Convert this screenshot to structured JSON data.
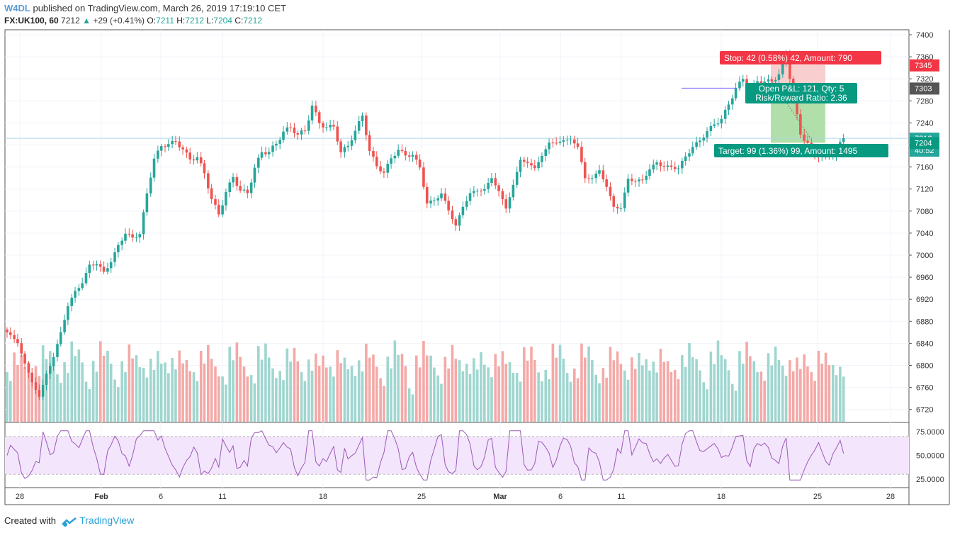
{
  "header": {
    "author": "W4DL",
    "published": "published on TradingView.com, March 26, 2019 17:19:10 CET",
    "symbol": "FX:UK100, 60",
    "last": "7212",
    "change_arrow": "▲",
    "change": "+29 (+0.41%)",
    "o_label": "O:",
    "o_value": "7211",
    "h_label": "H:",
    "h_value": "7212",
    "l_label": "L:",
    "l_value": "7204",
    "c_label": "C:",
    "c_value": "7212"
  },
  "footer": {
    "created_with": "Created with",
    "brand": "TradingView"
  },
  "colors": {
    "up": "#26a69a",
    "down": "#ef5350",
    "vol_up": "#9fd6cf",
    "vol_down": "#f4a9a7",
    "rsi_line": "#9b59b6",
    "rsi_band": "#f3e5fc",
    "stop_zone": "#f7c9c9",
    "target_zone": "#a8dca0",
    "last_price_line": "#add8e6"
  },
  "chart_data": {
    "type": "candlestick",
    "interval": "60",
    "price_axis": {
      "ticks": [
        7400,
        7360,
        7320,
        7280,
        7240,
        7200,
        7160,
        7120,
        7080,
        7040,
        7000,
        6960,
        6920,
        6880,
        6840,
        6800,
        6760,
        6720
      ],
      "range": [
        6700,
        7410
      ]
    },
    "time_axis": {
      "labels": [
        "28",
        "Feb",
        "6",
        "11",
        "18",
        "25",
        "Mar",
        "6",
        "11",
        "18",
        "25",
        "28"
      ]
    },
    "price_path": [
      [
        0,
        6850
      ],
      [
        3,
        6780
      ],
      [
        4,
        6745
      ],
      [
        6,
        6820
      ],
      [
        7,
        6860
      ],
      [
        9,
        6930
      ],
      [
        11,
        6990
      ],
      [
        13,
        6970
      ],
      [
        16,
        7030
      ],
      [
        18,
        7050
      ],
      [
        20,
        7170
      ],
      [
        21,
        7200
      ],
      [
        24,
        7195
      ],
      [
        26,
        7180
      ],
      [
        28,
        7100
      ],
      [
        29,
        7075
      ],
      [
        31,
        7140
      ],
      [
        33,
        7120
      ],
      [
        35,
        7180
      ],
      [
        37,
        7200
      ],
      [
        39,
        7240
      ],
      [
        41,
        7220
      ],
      [
        42,
        7260
      ],
      [
        43,
        7240
      ],
      [
        45,
        7230
      ],
      [
        46,
        7190
      ],
      [
        47,
        7210
      ],
      [
        49,
        7240
      ],
      [
        50,
        7185
      ],
      [
        52,
        7150
      ],
      [
        54,
        7200
      ],
      [
        56,
        7170
      ],
      [
        57,
        7150
      ],
      [
        58,
        7100
      ],
      [
        60,
        7110
      ],
      [
        62,
        7060
      ],
      [
        63,
        7080
      ],
      [
        65,
        7120
      ],
      [
        67,
        7140
      ],
      [
        69,
        7090
      ],
      [
        71,
        7160
      ],
      [
        73,
        7170
      ],
      [
        75,
        7200
      ],
      [
        77,
        7210
      ],
      [
        79,
        7190
      ],
      [
        80,
        7150
      ],
      [
        82,
        7150
      ],
      [
        84,
        7090
      ],
      [
        85,
        7080
      ],
      [
        86,
        7130
      ],
      [
        88,
        7150
      ],
      [
        90,
        7160
      ],
      [
        92,
        7160
      ],
      [
        93,
        7150
      ],
      [
        95,
        7210
      ],
      [
        97,
        7215
      ],
      [
        99,
        7250
      ],
      [
        100,
        7270
      ],
      [
        101,
        7300
      ],
      [
        102,
        7330
      ],
      [
        103,
        7310
      ],
      [
        105,
        7305
      ],
      [
        107,
        7330
      ],
      [
        108,
        7360
      ],
      [
        109,
        7290
      ],
      [
        110,
        7230
      ],
      [
        111,
        7200
      ],
      [
        112,
        7170
      ],
      [
        113,
        7180
      ],
      [
        115,
        7190
      ],
      [
        116,
        7212
      ]
    ],
    "volume_axis_top_value": 6843,
    "rsi": {
      "levels": [
        75.0,
        50.0,
        25.0
      ],
      "labels": [
        "75.0000",
        "50.0000",
        "25.0000"
      ],
      "band": [
        70,
        30
      ],
      "last": 52
    },
    "position": {
      "entry": 7303,
      "stop": 7345,
      "target": 7204,
      "stop_label": "Stop: 42 (0.58%) 42, Amount: 790",
      "target_label": "Target: 99 (1.36%) 99, Amount: 1495",
      "pnl_label_1": "Open P&L: 121, Qty: 5",
      "pnl_label_2": "Risk/Reward Ratio: 2.36"
    },
    "last_price": 7212,
    "countdown": "40:52",
    "axis_badges": [
      "7345",
      "7303",
      "7212",
      "40:52",
      "7204"
    ]
  }
}
